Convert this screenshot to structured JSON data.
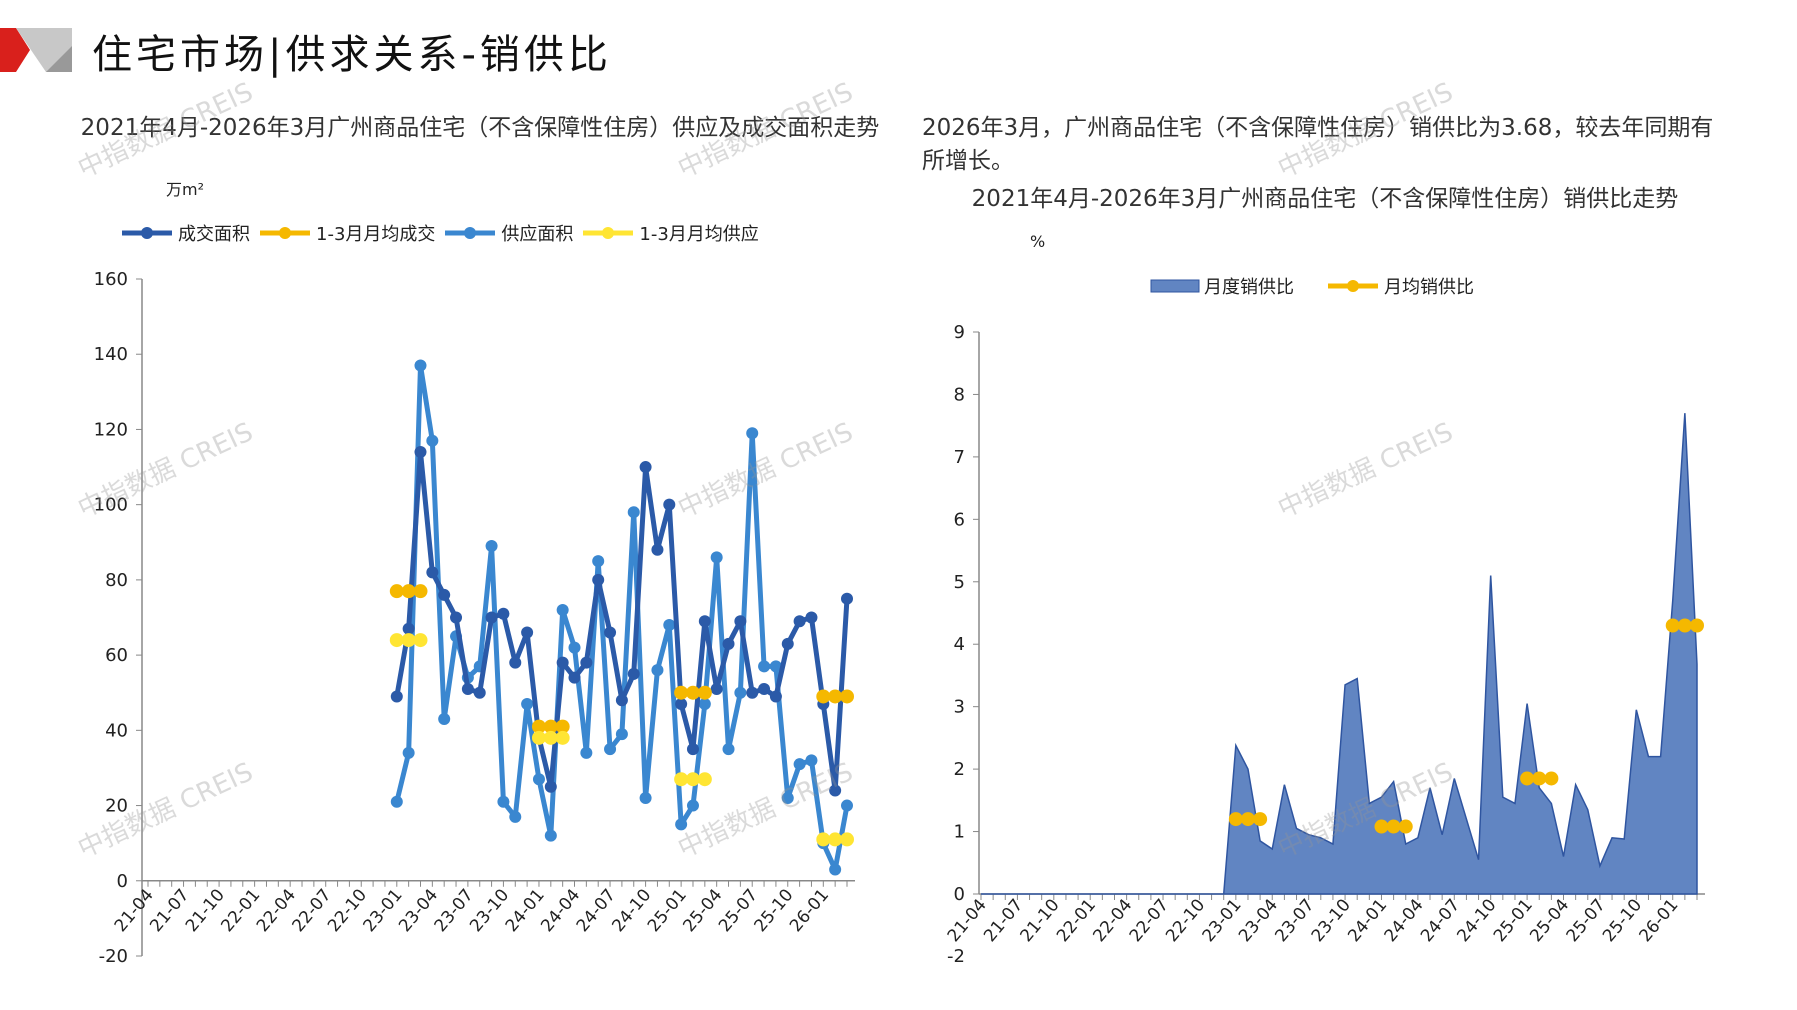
{
  "header": {
    "title": "住宅市场|供求关系-销供比"
  },
  "watermark": "中指数据 CREIS",
  "colors": {
    "deal": "#2b5aa8",
    "deal_avg": "#f5b800",
    "supply": "#3a87d0",
    "supply_avg": "#ffe533",
    "ratio_fill": "#6185c2",
    "ratio_line": "#2f55a0",
    "ratio_avg": "#f5b800",
    "red": "#d9201c"
  },
  "right_note": "2026年3月，广州商品住宅（不含保障性住房）销供比为3.68，较去年同期有所增长。",
  "chart_data": [
    {
      "type": "line",
      "title": "2021年4月-2026年3月广州商品住宅（不含保障性住房）供应及成交面积走势",
      "ylabel": "万m²",
      "ylim": [
        -20,
        160
      ],
      "yticks": [
        -20,
        0,
        20,
        40,
        60,
        80,
        100,
        120,
        140,
        160
      ],
      "x_start": "21-04",
      "n_months": 60,
      "xticks": [
        "21-04",
        "21-07",
        "21-10",
        "22-01",
        "22-04",
        "22-07",
        "22-10",
        "23-01",
        "23-04",
        "23-07",
        "23-10",
        "24-01",
        "24-04",
        "24-07",
        "24-10",
        "25-01",
        "25-04",
        "25-07",
        "25-10",
        "26-01"
      ],
      "legend": [
        "成交面积",
        "1-3月月均成交",
        "供应面积",
        "1-3月月均供应"
      ],
      "legend_position": "top",
      "series": [
        {
          "name": "成交面积",
          "start": "23-01",
          "values": [
            49,
            67,
            114,
            82,
            76,
            70,
            51,
            50,
            70,
            71,
            58,
            66,
            38,
            25,
            58,
            54,
            58,
            80,
            66,
            48,
            55,
            110,
            88,
            100,
            47,
            35,
            69,
            51,
            63,
            69,
            50,
            51,
            49,
            63,
            69,
            70,
            47,
            24,
            75
          ]
        },
        {
          "name": "1-3月月均成交",
          "segments": [
            {
              "start": "23-01",
              "value": 77
            },
            {
              "start": "24-01",
              "value": 41
            },
            {
              "start": "25-01",
              "value": 50
            },
            {
              "start": "26-01",
              "value": 49
            }
          ]
        },
        {
          "name": "供应面积",
          "start": "23-01",
          "values": [
            21,
            34,
            137,
            117,
            43,
            65,
            54,
            57,
            89,
            21,
            17,
            47,
            27,
            12,
            72,
            62,
            34,
            85,
            35,
            39,
            98,
            22,
            56,
            68,
            15,
            20,
            47,
            86,
            35,
            50,
            119,
            57,
            57,
            22,
            31,
            32,
            10,
            3,
            20
          ]
        },
        {
          "name": "1-3月月均供应",
          "segments": [
            {
              "start": "23-01",
              "value": 64
            },
            {
              "start": "24-01",
              "value": 38
            },
            {
              "start": "25-01",
              "value": 27
            },
            {
              "start": "26-01",
              "value": 11
            }
          ]
        }
      ]
    },
    {
      "type": "area",
      "title": "2021年4月-2026年3月广州商品住宅（不含保障性住房）销供比走势",
      "ylabel": "%",
      "ylim": [
        0,
        9
      ],
      "yticks": [
        0,
        1,
        2,
        3,
        4,
        5,
        6,
        7,
        8,
        9
      ],
      "bottom_label": "-2",
      "x_start": "21-04",
      "n_months": 60,
      "xticks": [
        "21-04",
        "21-07",
        "21-10",
        "22-01",
        "22-04",
        "22-07",
        "22-10",
        "23-01",
        "23-04",
        "23-07",
        "23-10",
        "24-01",
        "24-04",
        "24-07",
        "24-10",
        "25-01",
        "25-04",
        "25-07",
        "25-10",
        "26-01"
      ],
      "legend": [
        "月度销供比",
        "月均销供比"
      ],
      "legend_position": "top",
      "series": [
        {
          "name": "月度销供比",
          "start": "22-12",
          "values": [
            0,
            2.38,
            2.0,
            0.85,
            0.72,
            1.75,
            1.05,
            0.95,
            0.9,
            0.8,
            3.35,
            3.45,
            1.45,
            1.55,
            1.8,
            0.8,
            0.9,
            1.7,
            0.95,
            1.85,
            1.2,
            0.55,
            5.1,
            1.55,
            1.45,
            3.05,
            1.7,
            1.45,
            0.6,
            1.75,
            1.35,
            0.45,
            0.9,
            0.88,
            2.95,
            2.2,
            2.2,
            4.7,
            7.7,
            3.68
          ]
        },
        {
          "name": "月均销供比",
          "segments": [
            {
              "start": "23-01",
              "value": 1.2
            },
            {
              "start": "24-01",
              "value": 1.08
            },
            {
              "start": "25-01",
              "value": 1.85
            },
            {
              "start": "26-01",
              "value": 4.3
            }
          ]
        }
      ]
    }
  ]
}
